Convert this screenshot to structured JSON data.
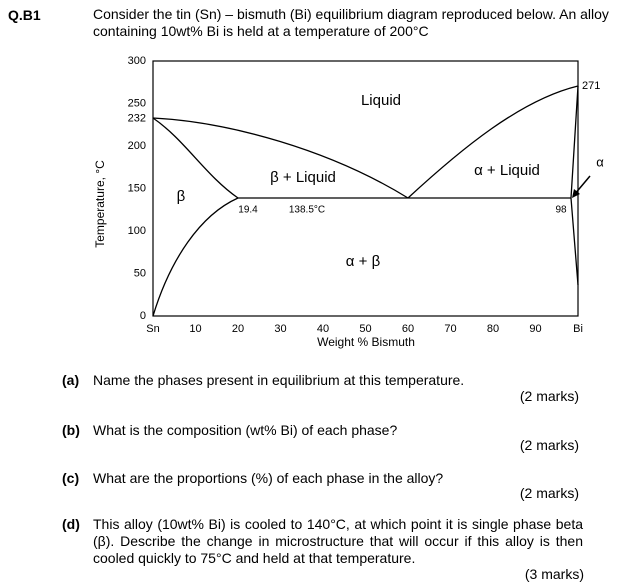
{
  "header": {
    "number": "Q.B1",
    "intro": "Consider the tin (Sn) – bismuth (Bi) equilibrium diagram reproduced below. An alloy containing 10wt% Bi is held at a temperature of 200°C"
  },
  "diagram": {
    "y_label": "Temperature, °C",
    "x_label": "Weight % Bismuth",
    "ylim": [
      0,
      300
    ],
    "yticks": [
      0,
      50,
      100,
      150,
      200,
      232,
      250,
      300
    ],
    "xlim": [
      0,
      100
    ],
    "xticks": [
      {
        "value": 0,
        "label": "Sn"
      },
      10,
      20,
      30,
      40,
      50,
      60,
      70,
      80,
      90,
      {
        "value": 100,
        "label": "Bi"
      }
    ],
    "regions": {
      "liquid": "Liquid",
      "beta_liquid": "β + Liquid",
      "alpha_liquid": "α + Liquid",
      "beta": "β",
      "alpha": "α",
      "alpha_beta": "α + β"
    },
    "annotations": {
      "beta_limit": "19.4",
      "eutectic_temp": "138.5°C",
      "alpha_limit": "98",
      "bi_melt": "271"
    }
  },
  "questions": [
    {
      "label": "(a)",
      "text": "Name the phases present in equilibrium at this temperature.",
      "marks": "(2 marks)"
    },
    {
      "label": "(b)",
      "text": "What is the composition (wt% Bi) of each phase?",
      "marks": "(2 marks)"
    },
    {
      "label": "(c)",
      "text": "What are the proportions (%) of each phase in the alloy?",
      "marks": "(2 marks)"
    },
    {
      "label": "(d)",
      "text": "This alloy (10wt% Bi) is cooled to 140°C, at which point it is single phase beta (β). Describe the change in microstructure that will occur if this alloy is then cooled quickly to 75°C and held at that temperature.",
      "marks": "(3 marks)"
    }
  ]
}
